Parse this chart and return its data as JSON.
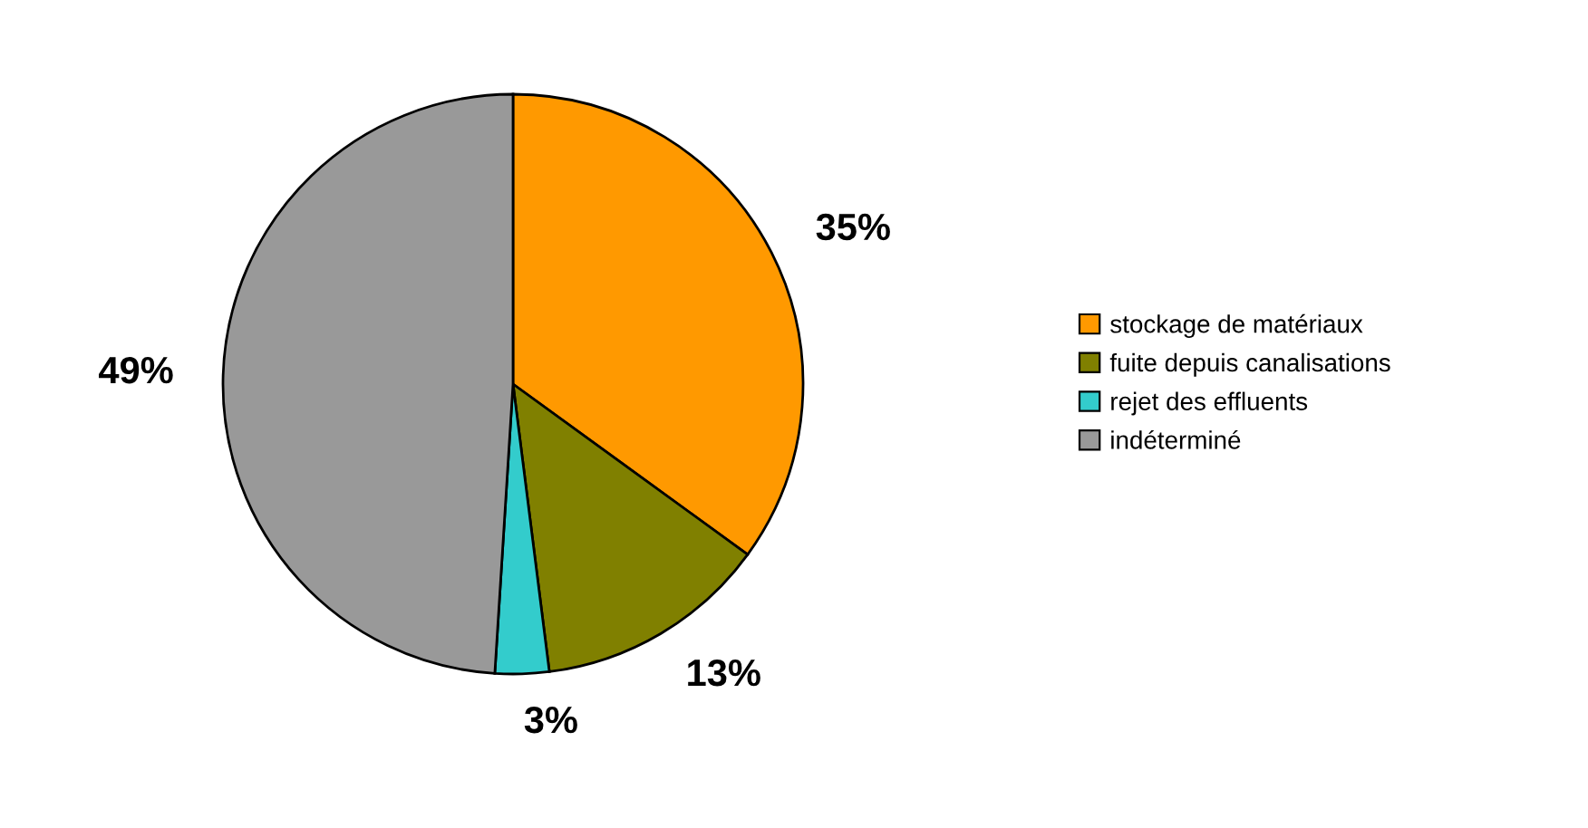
{
  "chart_data": {
    "type": "pie",
    "categories": [
      "stockage de matériaux",
      "fuite depuis canalisations",
      "rejet des effluents",
      "indéterminé"
    ],
    "values": [
      35,
      13,
      3,
      49
    ],
    "value_labels": [
      "35%",
      "13%",
      "3%",
      "49%"
    ],
    "colors": [
      "#ff9900",
      "#808000",
      "#33cccc",
      "#999999"
    ],
    "legend": "right"
  }
}
